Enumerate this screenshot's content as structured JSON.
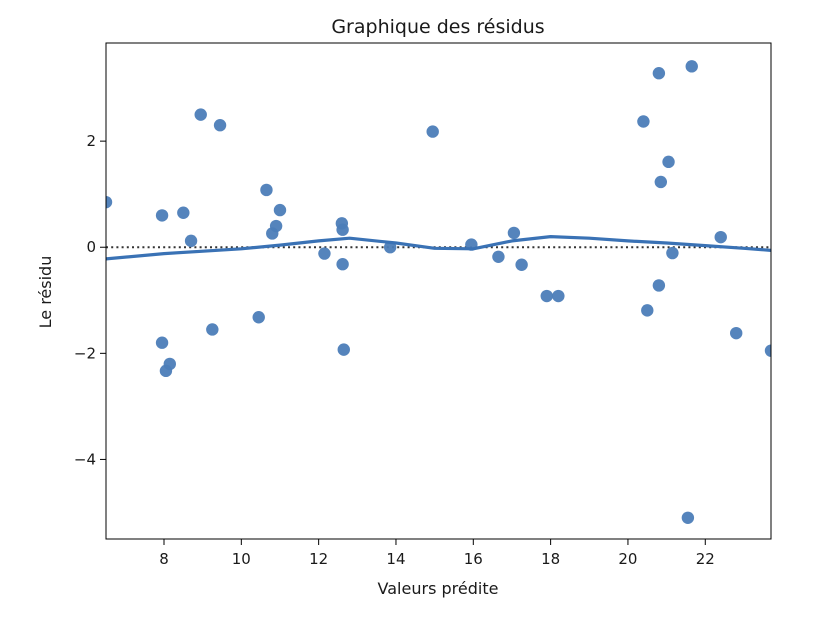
{
  "chart_data": {
    "type": "scatter",
    "title": "Graphique des résidus",
    "xlabel": "Valeurs prédite",
    "ylabel": "Le résidu",
    "xlim": [
      6.5,
      23.7
    ],
    "ylim": [
      -5.5,
      3.85
    ],
    "xticks": [
      8,
      10,
      12,
      14,
      16,
      18,
      20,
      22
    ],
    "yticks": [
      -4,
      -2,
      0,
      2
    ],
    "ytick_labels": [
      "−4",
      "−2",
      "0",
      "2"
    ],
    "grid": false,
    "colors": {
      "points": "#4c7db8",
      "smooth_line": "#3a72b5",
      "zero_line": "#333333",
      "axes": "#000000"
    },
    "zero_line": {
      "y": 0,
      "style": "dotted"
    },
    "points": [
      {
        "x": 6.5,
        "y": 0.85
      },
      {
        "x": 7.95,
        "y": 0.6
      },
      {
        "x": 8.5,
        "y": 0.65
      },
      {
        "x": 8.7,
        "y": 0.12
      },
      {
        "x": 8.95,
        "y": 2.5
      },
      {
        "x": 9.45,
        "y": 2.3
      },
      {
        "x": 7.95,
        "y": -1.8
      },
      {
        "x": 8.05,
        "y": -2.33
      },
      {
        "x": 8.15,
        "y": -2.2
      },
      {
        "x": 9.25,
        "y": -1.55
      },
      {
        "x": 10.45,
        "y": -1.32
      },
      {
        "x": 10.65,
        "y": 1.08
      },
      {
        "x": 10.8,
        "y": 0.26
      },
      {
        "x": 10.9,
        "y": 0.4
      },
      {
        "x": 11.0,
        "y": 0.7
      },
      {
        "x": 12.15,
        "y": -0.12
      },
      {
        "x": 12.6,
        "y": 0.45
      },
      {
        "x": 12.62,
        "y": 0.33
      },
      {
        "x": 12.62,
        "y": -0.32
      },
      {
        "x": 12.65,
        "y": -1.93
      },
      {
        "x": 13.85,
        "y": 0.0
      },
      {
        "x": 14.95,
        "y": 2.18
      },
      {
        "x": 15.95,
        "y": 0.05
      },
      {
        "x": 16.65,
        "y": -0.18
      },
      {
        "x": 17.05,
        "y": 0.27
      },
      {
        "x": 17.25,
        "y": -0.33
      },
      {
        "x": 17.9,
        "y": -0.92
      },
      {
        "x": 18.2,
        "y": -0.92
      },
      {
        "x": 20.4,
        "y": 2.37
      },
      {
        "x": 20.5,
        "y": -1.19
      },
      {
        "x": 20.8,
        "y": 3.28
      },
      {
        "x": 20.8,
        "y": -0.72
      },
      {
        "x": 20.85,
        "y": 1.23
      },
      {
        "x": 21.05,
        "y": 1.61
      },
      {
        "x": 21.15,
        "y": -0.11
      },
      {
        "x": 21.55,
        "y": -5.1
      },
      {
        "x": 21.65,
        "y": 3.41
      },
      {
        "x": 22.4,
        "y": 0.19
      },
      {
        "x": 22.8,
        "y": -1.62
      },
      {
        "x": 23.7,
        "y": -1.95
      }
    ],
    "smooth_line": {
      "x": [
        6.5,
        8,
        10,
        11,
        12,
        12.8,
        14,
        15,
        16,
        17,
        18,
        19,
        20,
        21,
        22,
        23,
        23.7
      ],
      "y": [
        -0.22,
        -0.12,
        -0.03,
        0.04,
        0.12,
        0.17,
        0.08,
        -0.02,
        -0.03,
        0.12,
        0.2,
        0.17,
        0.12,
        0.08,
        0.03,
        -0.02,
        -0.06
      ]
    }
  }
}
